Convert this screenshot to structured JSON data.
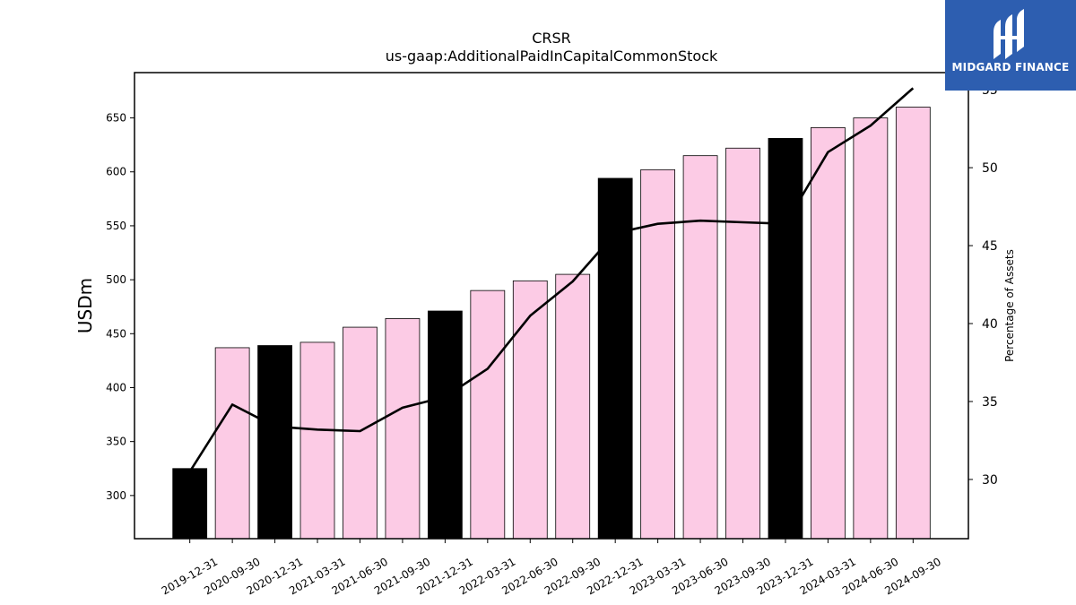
{
  "chart_data": {
    "type": "bar",
    "title": "CRSR",
    "subtitle": "us-gaap:AdditionalPaidInCapitalCommonStock",
    "ylabel": "USDm",
    "y2label": "Percentage of Assets",
    "ylim": [
      260,
      692
    ],
    "y2lim": [
      26.2,
      56.1
    ],
    "yticks": [
      300,
      350,
      400,
      450,
      500,
      550,
      600,
      650
    ],
    "y2ticks": [
      30,
      35,
      40,
      45,
      50,
      55
    ],
    "categories": [
      "2019-12-31",
      "2020-09-30",
      "2020-12-31",
      "2021-03-31",
      "2021-06-30",
      "2021-09-30",
      "2021-12-31",
      "2022-03-31",
      "2022-06-30",
      "2022-09-30",
      "2022-12-31",
      "2023-03-31",
      "2023-06-30",
      "2023-09-30",
      "2023-12-31",
      "2024-03-31",
      "2024-06-30",
      "2024-09-30"
    ],
    "values": [
      325,
      437,
      439,
      442,
      456,
      464,
      471,
      490,
      499,
      505,
      594,
      602,
      615,
      622,
      631,
      641,
      650,
      660
    ],
    "bar_colors": [
      "#000000",
      "#fccbe5",
      "#000000",
      "#fccbe5",
      "#fccbe5",
      "#fccbe5",
      "#000000",
      "#fccbe5",
      "#fccbe5",
      "#fccbe5",
      "#000000",
      "#fccbe5",
      "#fccbe5",
      "#fccbe5",
      "#000000",
      "#fccbe5",
      "#fccbe5",
      "#fccbe5"
    ],
    "line_values": [
      30.5,
      34.8,
      33.4,
      33.2,
      33.1,
      34.6,
      35.3,
      37.1,
      40.5,
      42.7,
      45.8,
      46.4,
      46.6,
      46.5,
      46.4,
      51.0,
      52.7,
      55.1
    ],
    "line_color": "#000000",
    "grid": false
  },
  "logo": {
    "text": "MIDGARD FINANCE",
    "background": "#2d5eb0"
  }
}
